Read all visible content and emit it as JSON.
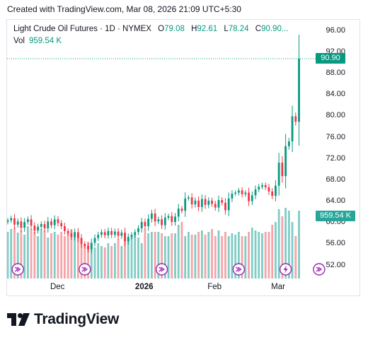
{
  "created_text": "Created with TradingView.com, Mar 08, 2026 21:09 UTC+5:30",
  "legend": {
    "name": "Light Crude Oil Futures · 1D · NYMEX",
    "open_label": "O",
    "open": "79.08",
    "high_label": "H",
    "high": "92.61",
    "low_label": "L",
    "low": "78.24",
    "close_label": "C",
    "close": "90.90...",
    "vol_label": "Vol",
    "vol": "959.54 K"
  },
  "price_tag": "90.90",
  "vol_tag": "959.54 K",
  "logo_text": "TradingView",
  "colors": {
    "up": "#089981",
    "down": "#f23645",
    "vol_up": "#7fccc4",
    "vol_down": "#f5a3a8",
    "event": "#9c27b0"
  },
  "chart_data": {
    "type": "candlestick",
    "y_ticks": [
      "96.00",
      "92.00",
      "88.00",
      "84.00",
      "80.00",
      "76.00",
      "72.00",
      "68.00",
      "64.00",
      "60.00",
      "56.00",
      "52.00"
    ],
    "ylim": [
      50.5,
      97
    ],
    "x_ticks": [
      {
        "label": "Dec",
        "index": 15,
        "bold": false
      },
      {
        "label": "2026",
        "index": 41,
        "bold": true
      },
      {
        "label": "Feb",
        "index": 62,
        "bold": false
      },
      {
        "label": "Mar",
        "index": 81,
        "bold": false
      }
    ],
    "last_price": 90.9,
    "last_volume": "959.54 K",
    "close": [
      60.6,
      61.0,
      59.8,
      60.4,
      59.2,
      60.3,
      60.8,
      59.6,
      58.7,
      59.4,
      59.9,
      59.1,
      60.4,
      59.7,
      60.8,
      60.1,
      59.5,
      58.6,
      58.2,
      57.5,
      58.4,
      57.3,
      56.2,
      55.8,
      55.2,
      56.4,
      57.3,
      57.9,
      58.4,
      57.8,
      58.6,
      57.9,
      58.5,
      57.7,
      58.3,
      56.7,
      57.5,
      57.9,
      58.4,
      59.1,
      60.3,
      59.5,
      60.9,
      61.9,
      60.4,
      60.8,
      59.7,
      61.1,
      61.4,
      60.3,
      61.3,
      62.8,
      62.4,
      64.7,
      64.9,
      63.6,
      64.3,
      63.1,
      64.6,
      63.5,
      64.3,
      63.7,
      63.0,
      64.4,
      63.9,
      62.5,
      64.7,
      65.6,
      65.8,
      66.2,
      65.5,
      65.8,
      64.2,
      65.3,
      66.4,
      66.9,
      67.2,
      66.8,
      66.0,
      65.2,
      67.1,
      71.4,
      68.9,
      74.5,
      75.4,
      80.1,
      79.08,
      90.9
    ],
    "volume": [
      0.66,
      0.7,
      0.72,
      0.65,
      0.68,
      0.62,
      0.74,
      0.7,
      0.66,
      0.6,
      0.7,
      0.68,
      0.58,
      0.64,
      0.66,
      0.62,
      0.66,
      0.6,
      0.64,
      0.7,
      0.6,
      0.64,
      0.56,
      0.46,
      0.52,
      0.5,
      0.44,
      0.5,
      0.46,
      0.44,
      0.5,
      0.46,
      0.5,
      0.56,
      0.46,
      0.56,
      0.56,
      0.6,
      0.62,
      0.58,
      0.5,
      0.7,
      0.64,
      0.66,
      0.66,
      0.66,
      0.64,
      0.6,
      0.6,
      0.64,
      0.64,
      0.76,
      0.8,
      0.6,
      0.66,
      0.62,
      0.62,
      0.66,
      0.68,
      0.62,
      0.66,
      0.7,
      0.6,
      0.68,
      0.6,
      0.66,
      0.6,
      0.64,
      0.62,
      0.66,
      0.6,
      0.6,
      0.66,
      0.72,
      0.68,
      0.66,
      0.64,
      0.66,
      0.66,
      0.76,
      0.8,
      0.98,
      0.88,
      1.0,
      0.96,
      0.8,
      0.6,
      0.96
    ],
    "events": [
      {
        "index": 3,
        "type": "dividend-arrow"
      },
      {
        "index": 23,
        "type": "dividend-arrow"
      },
      {
        "index": 46,
        "type": "dividend-arrow"
      },
      {
        "index": 69,
        "type": "dividend-arrow"
      },
      {
        "index": 83,
        "type": "lightning"
      },
      {
        "index": 93,
        "type": "dividend-arrow"
      }
    ]
  }
}
